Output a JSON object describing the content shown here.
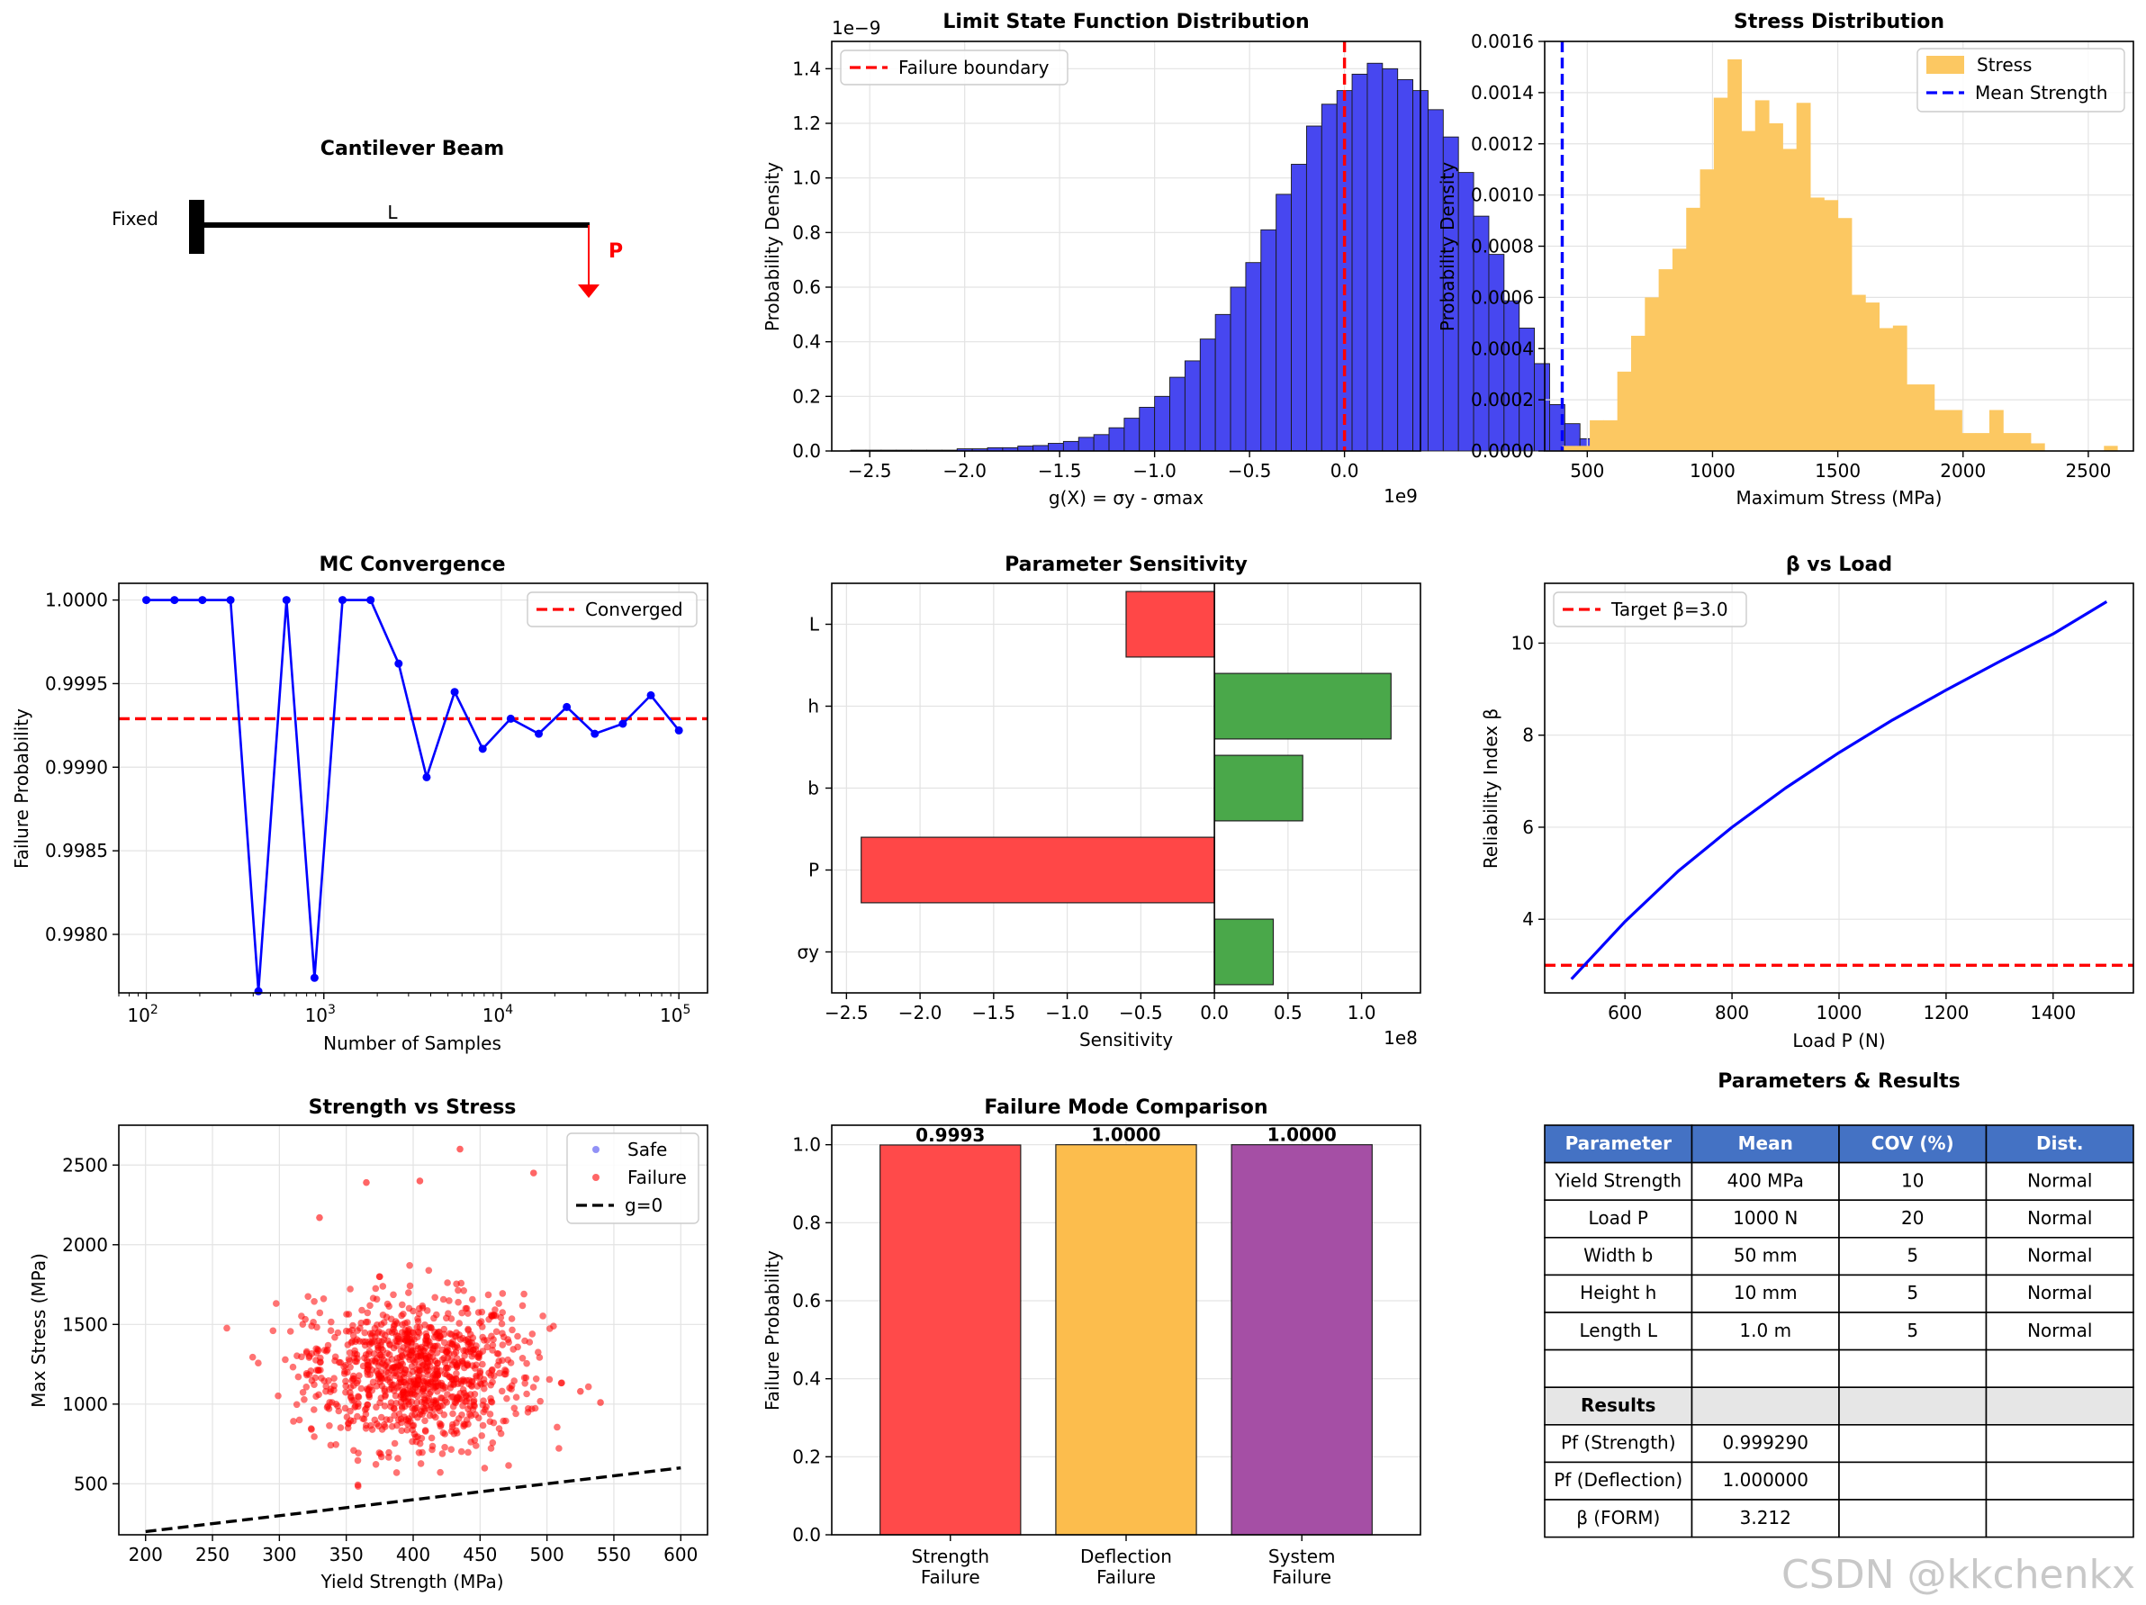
{
  "beam": {
    "title": "Cantilever Beam",
    "fixed_label": "Fixed",
    "length_label": "L",
    "load_label": "P"
  },
  "chart_data": [
    {
      "id": "limit_state",
      "type": "bar",
      "title": "Limit State Function Distribution",
      "xlabel": "g(X) = σy - σmax",
      "ylabel": "Probability Density",
      "x_multiplier": "1e9",
      "y_multiplier": "1e−9",
      "xlim": [
        -2.7,
        0.4
      ],
      "ylim": [
        0,
        1.5
      ],
      "xticks": [
        -2.5,
        -2.0,
        -1.5,
        -1.0,
        -0.5,
        0.0
      ],
      "xtick_labels": [
        "−2.5",
        "−2.0",
        "−1.5",
        "−1.0",
        "−0.5",
        "0.0"
      ],
      "yticks": [
        0.0,
        0.2,
        0.4,
        0.6,
        0.8,
        1.0,
        1.2,
        1.4
      ],
      "ytick_labels": [
        "0.0",
        "0.2",
        "0.4",
        "0.6",
        "0.8",
        "1.0",
        "1.2",
        "1.4"
      ],
      "bin_start": -2.6,
      "bin_width": 0.08,
      "values": [
        0.003,
        0.003,
        0.003,
        0.003,
        0.003,
        0.003,
        0.003,
        0.008,
        0.008,
        0.012,
        0.012,
        0.018,
        0.02,
        0.028,
        0.035,
        0.05,
        0.06,
        0.085,
        0.12,
        0.16,
        0.2,
        0.27,
        0.33,
        0.41,
        0.5,
        0.6,
        0.69,
        0.81,
        0.94,
        1.05,
        1.19,
        1.27,
        1.32,
        1.38,
        1.42,
        1.4,
        1.36,
        1.32,
        1.25,
        1.15,
        1.02,
        0.86,
        0.72,
        0.55,
        0.45,
        0.32,
        0.17,
        0.1,
        0.045,
        0.02,
        0.012,
        0.008,
        0.004,
        0.002
      ],
      "boundary": 0.0,
      "legend": [
        "Failure boundary"
      ],
      "colors": {
        "bars": "#4747f0",
        "line": "#ff0000"
      }
    },
    {
      "id": "stress",
      "type": "bar",
      "title": "Stress Distribution",
      "xlabel": "Maximum Stress (MPa)",
      "ylabel": "Probability Density",
      "xlim": [
        330,
        2680
      ],
      "ylim": [
        0,
        0.0016
      ],
      "xticks": [
        500,
        1000,
        1500,
        2000,
        2500
      ],
      "xtick_labels": [
        "500",
        "1000",
        "1500",
        "2000",
        "2500"
      ],
      "yticks": [
        0,
        0.0002,
        0.0004,
        0.0006,
        0.0008,
        0.001,
        0.0012,
        0.0014,
        0.0016
      ],
      "ytick_labels": [
        "0.0000",
        "0.0002",
        "0.0004",
        "0.0006",
        "0.0008",
        "0.0010",
        "0.0012",
        "0.0014",
        "0.0016"
      ],
      "bin_start": 400,
      "bin_width": 55,
      "values": [
        2e-05,
        2e-05,
        0.00012,
        0.00012,
        0.00031,
        0.00045,
        0.0006,
        0.00071,
        0.00079,
        0.00095,
        0.0011,
        0.00138,
        0.00153,
        0.00125,
        0.00137,
        0.00128,
        0.00118,
        0.00136,
        0.00099,
        0.00098,
        0.00091,
        0.00061,
        0.00058,
        0.00048,
        0.00049,
        0.00026,
        0.00026,
        0.00016,
        0.00016,
        7e-05,
        7e-05,
        0.00016,
        7e-05,
        7e-05,
        3e-05,
        0.0,
        0.0,
        0.0,
        0.0,
        0.0,
        0.0,
        0.0,
        0.0,
        0.0,
        0.0,
        0.0
      ],
      "extra_bar": {
        "x": 2590,
        "value": 2e-05
      },
      "mean_strength": 400,
      "legend": [
        "Stress",
        "Mean Strength"
      ],
      "colors": {
        "bars": "#fcc862",
        "line": "#0000ff"
      }
    },
    {
      "id": "convergence",
      "type": "line",
      "title": "MC Convergence",
      "xlabel": "Number of Samples",
      "ylabel": "Failure Probability",
      "xscale": "log",
      "xlim": [
        70,
        145000
      ],
      "ylim": [
        0.99765,
        1.0001
      ],
      "x": [
        100,
        144,
        207,
        298,
        428,
        616,
        886,
        1274,
        1833,
        2637,
        3793,
        5456,
        7848,
        11288,
        16238,
        23357,
        33598,
        48329,
        69519,
        100000
      ],
      "y": [
        1.0,
        1.0,
        1.0,
        1.0,
        0.99766,
        1.0,
        0.99774,
        1.0,
        1.0,
        0.99962,
        0.99894,
        0.99945,
        0.99911,
        0.99929,
        0.9992,
        0.99936,
        0.9992,
        0.99926,
        0.99943,
        0.99922
      ],
      "converged": 0.99929,
      "yticks": [
        0.998,
        0.9985,
        0.999,
        0.9995,
        1.0
      ],
      "ytick_labels": [
        "0.9980",
        "0.9985",
        "0.9990",
        "0.9995",
        "1.0000"
      ],
      "xtick_exps": [
        2,
        3,
        4,
        5
      ],
      "legend": [
        "Converged"
      ],
      "colors": {
        "line": "#0000ff",
        "ref": "#ff0000"
      }
    },
    {
      "id": "sensitivity",
      "type": "bar",
      "orientation": "horizontal",
      "title": "Parameter Sensitivity",
      "xlabel": "Sensitivity",
      "x_multiplier": "1e8",
      "xlim": [
        -2.6,
        1.4
      ],
      "categories": [
        "σy",
        "P",
        "b",
        "h",
        "L"
      ],
      "values": [
        0.4,
        -2.4,
        0.6,
        1.2,
        -0.6
      ],
      "xticks": [
        -2.5,
        -2.0,
        -1.5,
        -1.0,
        -0.5,
        0.0,
        0.5,
        1.0
      ],
      "xtick_labels": [
        "−2.5",
        "−2.0",
        "−1.5",
        "−1.0",
        "−0.5",
        "0.0",
        "0.5",
        "1.0"
      ],
      "colors": {
        "pos": "#4aa84a",
        "neg": "#ff4747"
      }
    },
    {
      "id": "beta_load",
      "type": "line",
      "title": "β vs Load",
      "xlabel": "Load P (N)",
      "ylabel": "Reliability Index β",
      "xlim": [
        450,
        1550
      ],
      "ylim": [
        2.4,
        11.3
      ],
      "x": [
        500,
        600,
        700,
        800,
        900,
        1000,
        1100,
        1200,
        1300,
        1400,
        1500
      ],
      "y": [
        2.7,
        3.95,
        5.05,
        6.0,
        6.85,
        7.62,
        8.33,
        8.98,
        9.6,
        10.2,
        10.9
      ],
      "target": 3.0,
      "xticks": [
        600,
        800,
        1000,
        1200,
        1400
      ],
      "xtick_labels": [
        "600",
        "800",
        "1000",
        "1200",
        "1400"
      ],
      "yticks": [
        4,
        6,
        8,
        10
      ],
      "ytick_labels": [
        "4",
        "6",
        "8",
        "10"
      ],
      "legend": [
        "Target β=3.0"
      ],
      "colors": {
        "line": "#0000ff",
        "ref": "#ff0000"
      }
    },
    {
      "id": "strength_stress",
      "type": "scatter",
      "title": "Strength vs Stress",
      "xlabel": "Yield Strength (MPa)",
      "ylabel": "Max Stress (MPa)",
      "xlim": [
        180,
        620
      ],
      "ylim": [
        180,
        2750
      ],
      "xticks": [
        200,
        250,
        300,
        350,
        400,
        450,
        500,
        550,
        600
      ],
      "xtick_labels": [
        "200",
        "250",
        "300",
        "350",
        "400",
        "450",
        "500",
        "550",
        "600"
      ],
      "yticks": [
        500,
        1000,
        1500,
        2000,
        2500
      ],
      "ytick_labels": [
        "500",
        "1000",
        "1500",
        "2000",
        "2500"
      ],
      "cluster": {
        "x_mean": 400,
        "x_sd": 40,
        "y_mean": 1200,
        "y_sd": 240,
        "count": 1000
      },
      "outliers": [
        [
          435,
          2600
        ],
        [
          490,
          2450
        ],
        [
          405,
          2400
        ],
        [
          365,
          2390
        ],
        [
          330,
          2170
        ],
        [
          540,
          1010
        ],
        [
          525,
          1080
        ]
      ],
      "g0_line": [
        [
          200,
          200
        ],
        [
          600,
          600
        ]
      ],
      "legend": [
        "Safe",
        "Failure",
        "g=0"
      ],
      "colors": {
        "safe": "#4747f0",
        "failure": "#ff0000",
        "line": "#000000"
      }
    },
    {
      "id": "failure_mode",
      "type": "bar",
      "title": "Failure Mode Comparison",
      "ylabel": "Failure Probability",
      "categories": [
        [
          "Strength",
          "Failure"
        ],
        [
          "Deflection",
          "Failure"
        ],
        [
          "System",
          "Failure"
        ]
      ],
      "values": [
        0.9993,
        1.0,
        1.0
      ],
      "value_labels": [
        "0.9993",
        "1.0000",
        "1.0000"
      ],
      "ylim": [
        0,
        1.05
      ],
      "yticks": [
        0.0,
        0.2,
        0.4,
        0.6,
        0.8,
        1.0
      ],
      "ytick_labels": [
        "0.0",
        "0.2",
        "0.4",
        "0.6",
        "0.8",
        "1.0"
      ],
      "colors": [
        "#ff4a4a",
        "#fcbd4d",
        "#a54fa5"
      ]
    }
  ],
  "table": {
    "title": "Parameters & Results",
    "headers": [
      "Parameter",
      "Mean",
      "COV (%)",
      "Dist."
    ],
    "rows": [
      [
        "Yield Strength",
        "400 MPa",
        "10",
        "Normal"
      ],
      [
        "Load P",
        "1000 N",
        "20",
        "Normal"
      ],
      [
        "Width b",
        "50 mm",
        "5",
        "Normal"
      ],
      [
        "Height h",
        "10 mm",
        "5",
        "Normal"
      ],
      [
        "Length L",
        "1.0 m",
        "5",
        "Normal"
      ],
      [
        "",
        "",
        "",
        ""
      ],
      [
        "Results",
        "",
        "",
        ""
      ],
      [
        "Pf (Strength)",
        "0.999290",
        "",
        ""
      ],
      [
        "Pf (Deflection)",
        "1.000000",
        "",
        ""
      ],
      [
        "β (FORM)",
        "3.212",
        "",
        ""
      ]
    ],
    "header_color": "#4472c4",
    "results_row_color": "#e6e6e6"
  },
  "watermark": "CSDN @kkchenkx"
}
